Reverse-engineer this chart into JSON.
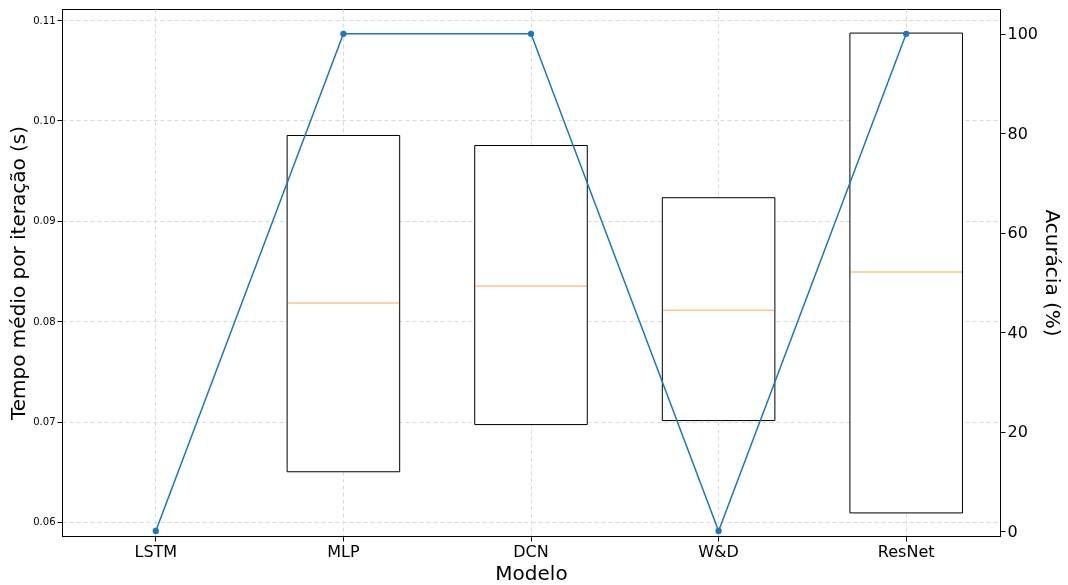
{
  "chart_data": {
    "type": "box",
    "xlabel": "Modelo",
    "ylabel": "Tempo médio por iteração (s)",
    "y2label": "Acurácia (%)",
    "categories": [
      "LSTM",
      "MLP",
      "DCN",
      "W&D",
      "ResNet"
    ],
    "ylim": [
      0.0586,
      0.1111
    ],
    "yticks": [
      0.06,
      0.07,
      0.08,
      0.09,
      {
        "value": 0.1,
        "label": "0.10"
      },
      0.11
    ],
    "y2lim": [
      -1,
      105
    ],
    "y2ticks": [
      0,
      20,
      40,
      60,
      80,
      100
    ],
    "grid": true,
    "series": [
      {
        "color": "#000000",
        "boxes": [
          null,
          {
            "low": 0.065,
            "q1": 0.065,
            "median": 0.0818,
            "q3": 0.0985,
            "high": 0.0985
          },
          {
            "low": 0.0697,
            "q1": 0.0697,
            "median": 0.0835,
            "q3": 0.0975,
            "high": 0.0975
          },
          {
            "low": 0.0701,
            "q1": 0.0701,
            "median": 0.0811,
            "q3": 0.0923,
            "high": 0.0923
          },
          {
            "low": 0.0609,
            "q1": 0.0609,
            "median": 0.0849,
            "q3": 0.1087,
            "high": 0.1087
          }
        ]
      },
      {
        "type": "line",
        "axis": "y2",
        "color": "#1f77b4",
        "marker": "circle",
        "values": [
          0,
          100,
          100,
          0,
          100
        ]
      }
    ]
  }
}
